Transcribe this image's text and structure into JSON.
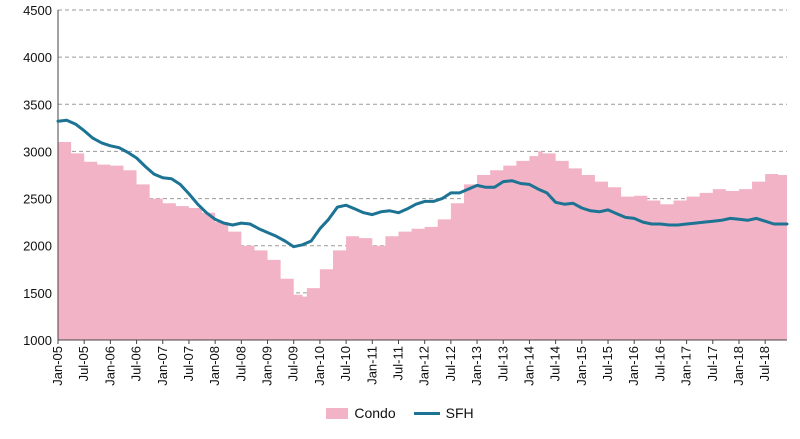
{
  "chart_data": {
    "type": "area",
    "title": "",
    "xlabel": "",
    "ylabel": "",
    "ylim": [
      1000,
      4500
    ],
    "yticks": [
      1000,
      1500,
      2000,
      2500,
      3000,
      3500,
      4000,
      4500
    ],
    "grid": "horizontal dashed",
    "legend_position": "bottom-center",
    "x_tick_labels": [
      "Jan-05",
      "Jul-05",
      "Jan-06",
      "Jul-06",
      "Jan-07",
      "Jul-07",
      "Jan-08",
      "Jul-08",
      "Jan-09",
      "Jul-09",
      "Jan-10",
      "Jul-10",
      "Jan-11",
      "Jul-11",
      "Jan-12",
      "Jul-12",
      "Jan-13",
      "Jul-13",
      "Jan-14",
      "Jul-14",
      "Jan-15",
      "Jul-15",
      "Jan-16",
      "Jul-16",
      "Jan-17",
      "Jul-17",
      "Jan-18",
      "Jul-18"
    ],
    "series": [
      {
        "name": "Condo",
        "kind": "area",
        "color": "#f3b3c6",
        "points": [
          [
            "Jan-05",
            3100
          ],
          [
            "Apr-05",
            2980
          ],
          [
            "Jul-05",
            2890
          ],
          [
            "Oct-05",
            2860
          ],
          [
            "Jan-06",
            2850
          ],
          [
            "Apr-06",
            2800
          ],
          [
            "Jul-06",
            2650
          ],
          [
            "Oct-06",
            2500
          ],
          [
            "Jan-07",
            2450
          ],
          [
            "Apr-07",
            2420
          ],
          [
            "Jul-07",
            2400
          ],
          [
            "Oct-07",
            2350
          ],
          [
            "Jan-08",
            2250
          ],
          [
            "Apr-08",
            2150
          ],
          [
            "Jul-08",
            2000
          ],
          [
            "Oct-08",
            1950
          ],
          [
            "Jan-09",
            1850
          ],
          [
            "Apr-09",
            1650
          ],
          [
            "Jul-09",
            1480
          ],
          [
            "Sep-09",
            1460
          ],
          [
            "Oct-09",
            1550
          ],
          [
            "Jan-10",
            1750
          ],
          [
            "Apr-10",
            1950
          ],
          [
            "Jul-10",
            2100
          ],
          [
            "Oct-10",
            2080
          ],
          [
            "Jan-11",
            2000
          ],
          [
            "Apr-11",
            2100
          ],
          [
            "Jul-11",
            2150
          ],
          [
            "Oct-11",
            2180
          ],
          [
            "Jan-12",
            2200
          ],
          [
            "Apr-12",
            2280
          ],
          [
            "Jul-12",
            2450
          ],
          [
            "Oct-12",
            2650
          ],
          [
            "Jan-13",
            2750
          ],
          [
            "Apr-13",
            2800
          ],
          [
            "Jul-13",
            2850
          ],
          [
            "Oct-13",
            2900
          ],
          [
            "Jan-14",
            2950
          ],
          [
            "Mar-14",
            3000
          ],
          [
            "Apr-14",
            2980
          ],
          [
            "Jul-14",
            2900
          ],
          [
            "Oct-14",
            2820
          ],
          [
            "Jan-15",
            2750
          ],
          [
            "Apr-15",
            2680
          ],
          [
            "Jul-15",
            2620
          ],
          [
            "Oct-15",
            2520
          ],
          [
            "Jan-16",
            2530
          ],
          [
            "Apr-16",
            2480
          ],
          [
            "Jul-16",
            2440
          ],
          [
            "Oct-16",
            2480
          ],
          [
            "Jan-17",
            2520
          ],
          [
            "Apr-17",
            2560
          ],
          [
            "Jul-17",
            2600
          ],
          [
            "Oct-17",
            2580
          ],
          [
            "Jan-18",
            2600
          ],
          [
            "Apr-18",
            2680
          ],
          [
            "Jul-18",
            2760
          ],
          [
            "Oct-18",
            2750
          ],
          [
            "Dec-18",
            2700
          ]
        ]
      },
      {
        "name": "SFH",
        "kind": "line",
        "color": "#1c7393",
        "points": [
          [
            "Jan-05",
            3320
          ],
          [
            "Mar-05",
            3330
          ],
          [
            "May-05",
            3290
          ],
          [
            "Jul-05",
            3220
          ],
          [
            "Sep-05",
            3140
          ],
          [
            "Nov-05",
            3090
          ],
          [
            "Jan-06",
            3060
          ],
          [
            "Mar-06",
            3040
          ],
          [
            "May-06",
            2990
          ],
          [
            "Jul-06",
            2930
          ],
          [
            "Sep-06",
            2840
          ],
          [
            "Nov-06",
            2760
          ],
          [
            "Jan-07",
            2720
          ],
          [
            "Mar-07",
            2710
          ],
          [
            "May-07",
            2650
          ],
          [
            "Jul-07",
            2550
          ],
          [
            "Sep-07",
            2440
          ],
          [
            "Nov-07",
            2350
          ],
          [
            "Jan-08",
            2280
          ],
          [
            "Mar-08",
            2240
          ],
          [
            "May-08",
            2220
          ],
          [
            "Jul-08",
            2240
          ],
          [
            "Sep-08",
            2230
          ],
          [
            "Nov-08",
            2180
          ],
          [
            "Jan-09",
            2140
          ],
          [
            "Mar-09",
            2100
          ],
          [
            "May-09",
            2050
          ],
          [
            "Jul-09",
            1990
          ],
          [
            "Sep-09",
            2010
          ],
          [
            "Nov-09",
            2050
          ],
          [
            "Jan-10",
            2180
          ],
          [
            "Mar-10",
            2280
          ],
          [
            "May-10",
            2410
          ],
          [
            "Jul-10",
            2430
          ],
          [
            "Sep-10",
            2390
          ],
          [
            "Nov-10",
            2350
          ],
          [
            "Jan-11",
            2330
          ],
          [
            "Mar-11",
            2360
          ],
          [
            "May-11",
            2370
          ],
          [
            "Jul-11",
            2350
          ],
          [
            "Sep-11",
            2390
          ],
          [
            "Nov-11",
            2440
          ],
          [
            "Jan-12",
            2470
          ],
          [
            "Mar-12",
            2470
          ],
          [
            "May-12",
            2500
          ],
          [
            "Jul-12",
            2560
          ],
          [
            "Sep-12",
            2560
          ],
          [
            "Nov-12",
            2600
          ],
          [
            "Jan-13",
            2640
          ],
          [
            "Mar-13",
            2620
          ],
          [
            "May-13",
            2620
          ],
          [
            "Jul-13",
            2680
          ],
          [
            "Sep-13",
            2690
          ],
          [
            "Nov-13",
            2660
          ],
          [
            "Jan-14",
            2650
          ],
          [
            "Mar-14",
            2600
          ],
          [
            "May-14",
            2560
          ],
          [
            "Jul-14",
            2460
          ],
          [
            "Sep-14",
            2440
          ],
          [
            "Nov-14",
            2450
          ],
          [
            "Jan-15",
            2400
          ],
          [
            "Mar-15",
            2370
          ],
          [
            "May-15",
            2360
          ],
          [
            "Jul-15",
            2380
          ],
          [
            "Sep-15",
            2340
          ],
          [
            "Nov-15",
            2300
          ],
          [
            "Jan-16",
            2290
          ],
          [
            "Mar-16",
            2250
          ],
          [
            "May-16",
            2230
          ],
          [
            "Jul-16",
            2230
          ],
          [
            "Sep-16",
            2220
          ],
          [
            "Nov-16",
            2220
          ],
          [
            "Jan-17",
            2230
          ],
          [
            "Mar-17",
            2240
          ],
          [
            "May-17",
            2250
          ],
          [
            "Jul-17",
            2260
          ],
          [
            "Sep-17",
            2270
          ],
          [
            "Nov-17",
            2290
          ],
          [
            "Jan-18",
            2280
          ],
          [
            "Mar-18",
            2270
          ],
          [
            "May-18",
            2290
          ],
          [
            "Jul-18",
            2260
          ],
          [
            "Sep-18",
            2230
          ],
          [
            "Nov-18",
            2230
          ],
          [
            "Dec-18",
            2230
          ]
        ]
      }
    ]
  }
}
